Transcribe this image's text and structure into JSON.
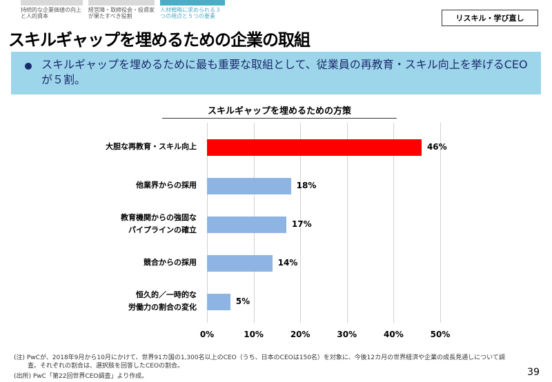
{
  "tabs": [
    {
      "label": "持続的な企業価値の向上と人的資本",
      "active": false
    },
    {
      "label": "経営陣・取締役会・投資家が果たすべき役割",
      "active": false
    },
    {
      "label": "人材戦略に求められる３つの視点と５つの要素",
      "active": true
    }
  ],
  "colors": {
    "tab_inactive": "#d9d9d9",
    "tab_active": "#4bacc6",
    "band": "#9dd5ea",
    "highlight_bar": "#ff0000",
    "bar": "#8eb4e3"
  },
  "section_pill": "リスキル・学び直し",
  "page_title": "スキルギャップを埋めるための企業の取組",
  "summary": "スキルギャップを埋めるために最も重要な取組として、従業員の再教育・スキル向上を挙げるCEOが５割。",
  "chart_data": {
    "type": "bar",
    "orientation": "horizontal",
    "title": "スキルギャップを埋めるための方策",
    "categories": [
      "大胆な再教育・スキル向上",
      "他業界からの採用",
      "教育機関からの強固な\nパイプラインの確立",
      "競合からの採用",
      "恒久的／一時的な\n労働力の割合の変化"
    ],
    "values": [
      46,
      18,
      17,
      14,
      5
    ],
    "data_labels": [
      "46%",
      "18%",
      "17%",
      "14%",
      "5%"
    ],
    "highlight_index": 0,
    "xlim": [
      0,
      50
    ],
    "xticks": [
      "0%",
      "10%",
      "20%",
      "30%",
      "40%",
      "50%"
    ],
    "grid": "vertical"
  },
  "notes": [
    "(注) PwCが、2018年9月から10月にかけて、世界91カ国の1,300名以上のCEO（うち、日本のCEOは150名）を対象に、今後12カ月の世界経済や企業の成長見通しについて調",
    "査。それぞれの割合は、選択肢を回答したCEOの割合。",
    "(出所) PwC「第22回世界CEO調査」より作成。"
  ],
  "page_number": "39"
}
